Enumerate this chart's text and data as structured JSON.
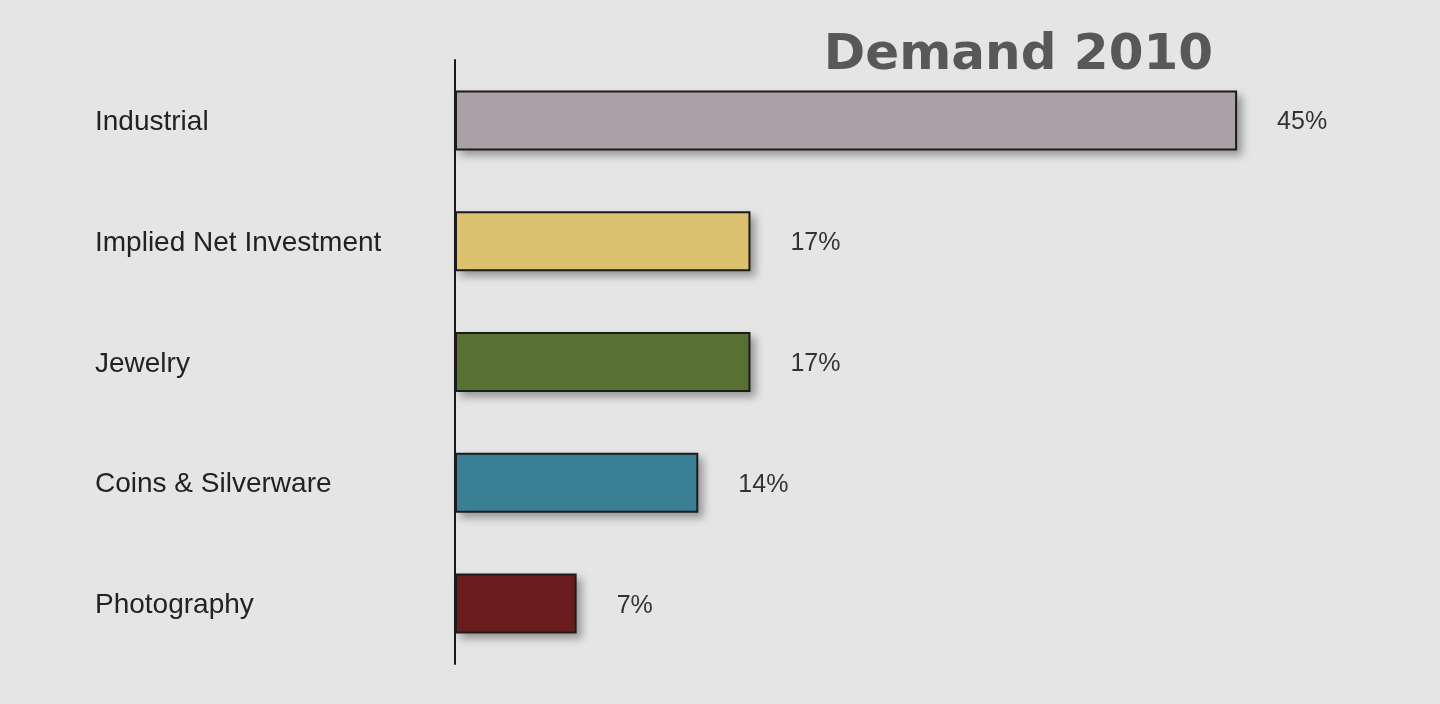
{
  "chart_data": {
    "type": "bar",
    "orientation": "horizontal",
    "title": "Demand 2010",
    "categories": [
      "Industrial",
      "Implied Net Investment",
      "Jewelry",
      "Coins & Silverware",
      "Photography"
    ],
    "values": [
      45,
      17,
      17,
      14,
      7
    ],
    "value_labels": [
      "45%",
      "17%",
      "17%",
      "14%",
      "7%"
    ],
    "colors": [
      "#a8a2a8",
      "#dcc26e",
      "#587033",
      "#3b7f94",
      "#6a1f1f"
    ],
    "tick_labels": "y"
  }
}
